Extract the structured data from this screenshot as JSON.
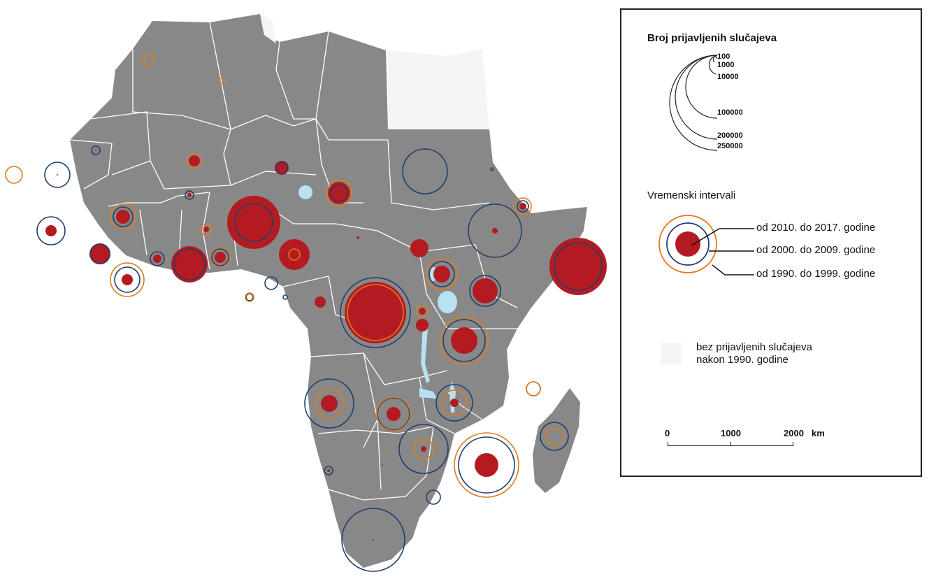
{
  "legend": {
    "size_title": "Broj prijavljenih slučajeva",
    "size_values": [
      "100",
      "1000",
      "10000",
      "100000",
      "200000",
      "250000"
    ],
    "time_title": "Vremenski intervali",
    "intervals": [
      {
        "label": "od 2010. do 2017. godine",
        "color": "#b31b21"
      },
      {
        "label": "od 2000. do 2009. godine",
        "color": "#1f3f6e"
      },
      {
        "label": "od 1990. do 1999. godine",
        "color": "#e07b1a"
      }
    ],
    "no_cases_label_1": "bez prijavljenih slučajeva",
    "no_cases_label_2": "nakon 1990. godine",
    "no_cases_color": "#f3f5f7",
    "scale": {
      "ticks": [
        "0",
        "1000",
        "2000"
      ],
      "unit": "km"
    }
  },
  "colors": {
    "land": "#888888",
    "borders": "#ffffff",
    "lakes": "#b8e1f2",
    "recent": "#b31b21",
    "mid": "#1f3f6e",
    "old": "#e07b1a"
  }
}
